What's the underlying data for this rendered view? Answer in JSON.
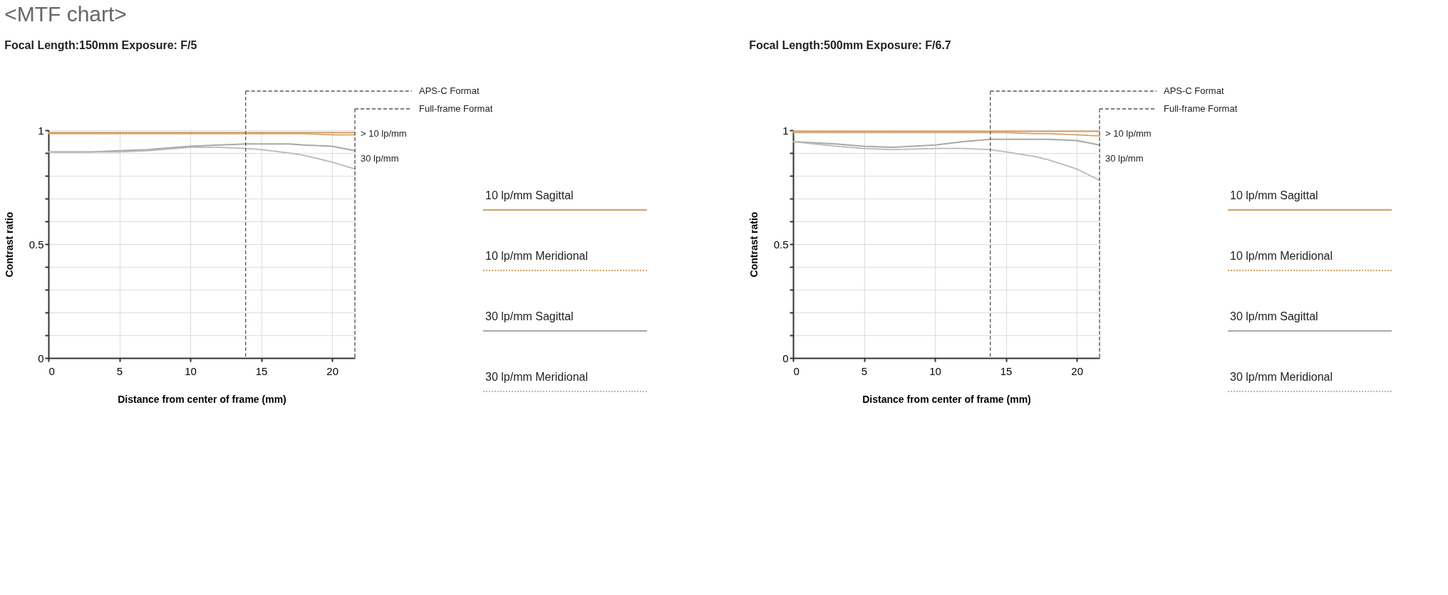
{
  "chart_data": [
    {
      "type": "line",
      "title": "<MTF chart>",
      "subtitle": "Focal Length:150mm  Exposure: F/5",
      "xlabel": "Distance from center of frame (mm)",
      "ylabel": "Contrast ratio",
      "xlim": [
        0,
        21.6
      ],
      "ylim": [
        0,
        1
      ],
      "xticks": [
        0,
        5,
        10,
        15,
        20
      ],
      "yticks": [
        0,
        {
          "value": 0.1,
          "label": null
        },
        {
          "value": 0.2,
          "label": null
        },
        {
          "value": 0.3,
          "label": null
        },
        {
          "value": 0.4,
          "label": null
        },
        0.5,
        {
          "value": 0.6,
          "label": null
        },
        {
          "value": 0.7,
          "label": null
        },
        {
          "value": 0.8,
          "label": null
        },
        {
          "value": 0.9,
          "label": null
        },
        1
      ],
      "grid": true,
      "legend": "right",
      "marker": "none",
      "x": [
        0,
        3,
        5,
        7,
        10,
        12,
        13.9,
        15,
        17,
        18,
        20,
        21.6
      ],
      "series": [
        {
          "name": "10 lp/mm Sagittal",
          "color": "#d4a068",
          "line_style": "solid",
          "values": [
            0.99,
            0.99,
            0.99,
            0.99,
            0.99,
            0.99,
            0.99,
            0.99,
            0.99,
            0.99,
            0.99,
            0.99
          ]
        },
        {
          "name": "10 lp/mm Meridional",
          "color": "#d4a068",
          "line_style": "dotted",
          "values": [
            0.985,
            0.985,
            0.985,
            0.985,
            0.985,
            0.985,
            0.985,
            0.985,
            0.985,
            0.985,
            0.98,
            0.98
          ]
        },
        {
          "name": "30 lp/mm Sagittal",
          "color": "#a8a8a8",
          "line_style": "solid",
          "values": [
            0.905,
            0.905,
            0.91,
            0.915,
            0.93,
            0.935,
            0.94,
            0.94,
            0.94,
            0.935,
            0.93,
            0.91
          ]
        },
        {
          "name": "30 lp/mm Meridional",
          "color": "#b8b8b8",
          "line_style": "dotted",
          "values": [
            0.905,
            0.905,
            0.905,
            0.91,
            0.925,
            0.925,
            0.92,
            0.915,
            0.9,
            0.89,
            0.86,
            0.83
          ]
        }
      ],
      "ref_lines": [
        {
          "axis": "x",
          "value": 13.9,
          "label": "APS-C Format",
          "color": "#555555",
          "line_style": "dashed"
        },
        {
          "axis": "x",
          "value": 21.6,
          "label": "Full-frame Format",
          "color": "#555555",
          "line_style": "dashed"
        }
      ],
      "annotations": [
        "> 10 lp/mm",
        "30 lp/mm"
      ]
    },
    {
      "type": "line",
      "title": "Focal Length:500mm  Exposure: F/6.7",
      "xlabel": "Distance from center of frame (mm)",
      "ylabel": "Contrast ratio",
      "xlim": [
        0,
        21.6
      ],
      "ylim": [
        0,
        1
      ],
      "xticks": [
        0,
        5,
        10,
        15,
        20
      ],
      "yticks": [
        0,
        {
          "value": 0.1,
          "label": null
        },
        {
          "value": 0.2,
          "label": null
        },
        {
          "value": 0.3,
          "label": null
        },
        {
          "value": 0.4,
          "label": null
        },
        0.5,
        {
          "value": 0.6,
          "label": null
        },
        {
          "value": 0.7,
          "label": null
        },
        {
          "value": 0.8,
          "label": null
        },
        {
          "value": 0.9,
          "label": null
        },
        1
      ],
      "grid": true,
      "legend": "right",
      "marker": "none",
      "x": [
        0,
        3,
        5,
        7,
        10,
        12,
        13.9,
        15,
        17,
        18,
        20,
        21.6
      ],
      "series": [
        {
          "name": "10 lp/mm Sagittal",
          "color": "#d4a068",
          "line_style": "solid",
          "values": [
            0.995,
            0.995,
            0.995,
            0.995,
            0.995,
            0.995,
            0.995,
            0.995,
            0.995,
            0.995,
            0.995,
            0.995
          ]
        },
        {
          "name": "10 lp/mm Meridional",
          "color": "#d4a068",
          "line_style": "dotted",
          "values": [
            0.99,
            0.99,
            0.99,
            0.99,
            0.99,
            0.99,
            0.99,
            0.99,
            0.985,
            0.985,
            0.98,
            0.975
          ]
        },
        {
          "name": "30 lp/mm Sagittal",
          "color": "#a8a8a8",
          "line_style": "solid",
          "values": [
            0.95,
            0.94,
            0.93,
            0.925,
            0.935,
            0.95,
            0.96,
            0.96,
            0.96,
            0.96,
            0.955,
            0.935
          ]
        },
        {
          "name": "30 lp/mm Meridional",
          "color": "#b8b8b8",
          "line_style": "dotted",
          "values": [
            0.95,
            0.93,
            0.92,
            0.915,
            0.92,
            0.92,
            0.915,
            0.905,
            0.885,
            0.87,
            0.83,
            0.78
          ]
        }
      ],
      "ref_lines": [
        {
          "axis": "x",
          "value": 13.9,
          "label": "APS-C Format",
          "color": "#555555",
          "line_style": "dashed"
        },
        {
          "axis": "x",
          "value": 21.6,
          "label": "Full-frame Format",
          "color": "#555555",
          "line_style": "dashed"
        }
      ],
      "annotations": [
        "> 10 lp/mm",
        "30 lp/mm"
      ]
    }
  ]
}
